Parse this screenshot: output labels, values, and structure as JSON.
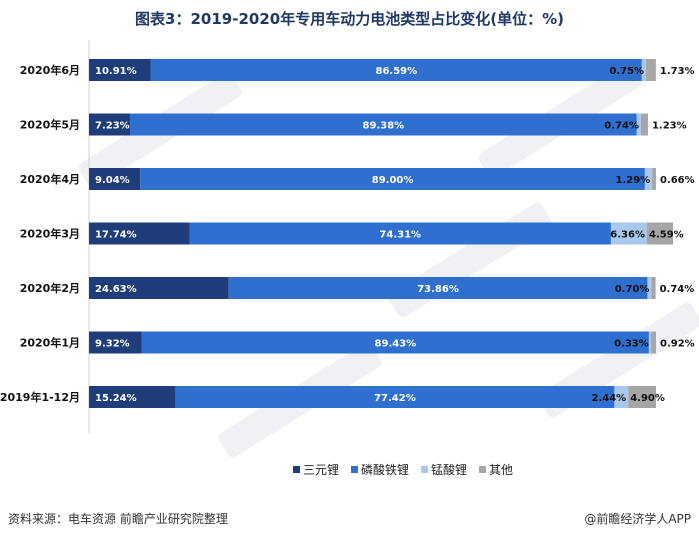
{
  "title": "图表3：2019-2020年专用车动力电池类型占比变化(单位：%)",
  "source": "资料来源：电车资源  前瞻产业研究院整理",
  "brand": "@前瞻经济学人APP",
  "chart_data": {
    "type": "bar",
    "orientation": "horizontal",
    "stacked": true,
    "title": "图表3：2019-2020年专用车动力电池类型占比变化(单位：%)",
    "categories": [
      "2020年6月",
      "2020年5月",
      "2020年4月",
      "2020年3月",
      "2020年2月",
      "2020年1月",
      "2019年1-12月"
    ],
    "series": [
      {
        "name": "三元锂",
        "color": "#1f3d7a",
        "label_color": "#ffffff",
        "values": [
          10.91,
          7.23,
          9.04,
          17.74,
          24.63,
          9.32,
          15.24
        ],
        "labels": [
          "10.91%",
          "7.23%",
          "9.04%",
          "17.74%",
          "24.63%",
          "9.32%",
          "15.24%"
        ]
      },
      {
        "name": "磷酸铁锂",
        "color": "#2e6fcf",
        "label_color": "#ffffff",
        "values": [
          86.59,
          89.38,
          89.0,
          74.31,
          73.86,
          89.43,
          77.42
        ],
        "labels": [
          "86.59%",
          "89.38%",
          "89.00%",
          "74.31%",
          "73.86%",
          "89.43%",
          "77.42%"
        ]
      },
      {
        "name": "锰酸锂",
        "color": "#a9c8ee",
        "label_color": "#111111",
        "values": [
          0.75,
          0.74,
          1.29,
          6.36,
          0.7,
          0.33,
          2.44
        ],
        "labels": [
          "0.75%",
          "0.74%",
          "1.29%",
          "6.36%",
          "0.70%",
          "0.33%",
          "2.44%"
        ]
      },
      {
        "name": "其他",
        "color": "#a6a6a6",
        "label_color": "#111111",
        "values": [
          1.73,
          1.23,
          0.66,
          4.59,
          0.74,
          0.92,
          4.9
        ],
        "labels": [
          "1.73%",
          "1.23%",
          "0.66%",
          "4.59%",
          "0.74%",
          "0.92%",
          "4.90%"
        ]
      }
    ],
    "xlim": [
      0,
      100
    ],
    "legend_position": "bottom",
    "grid": false
  }
}
